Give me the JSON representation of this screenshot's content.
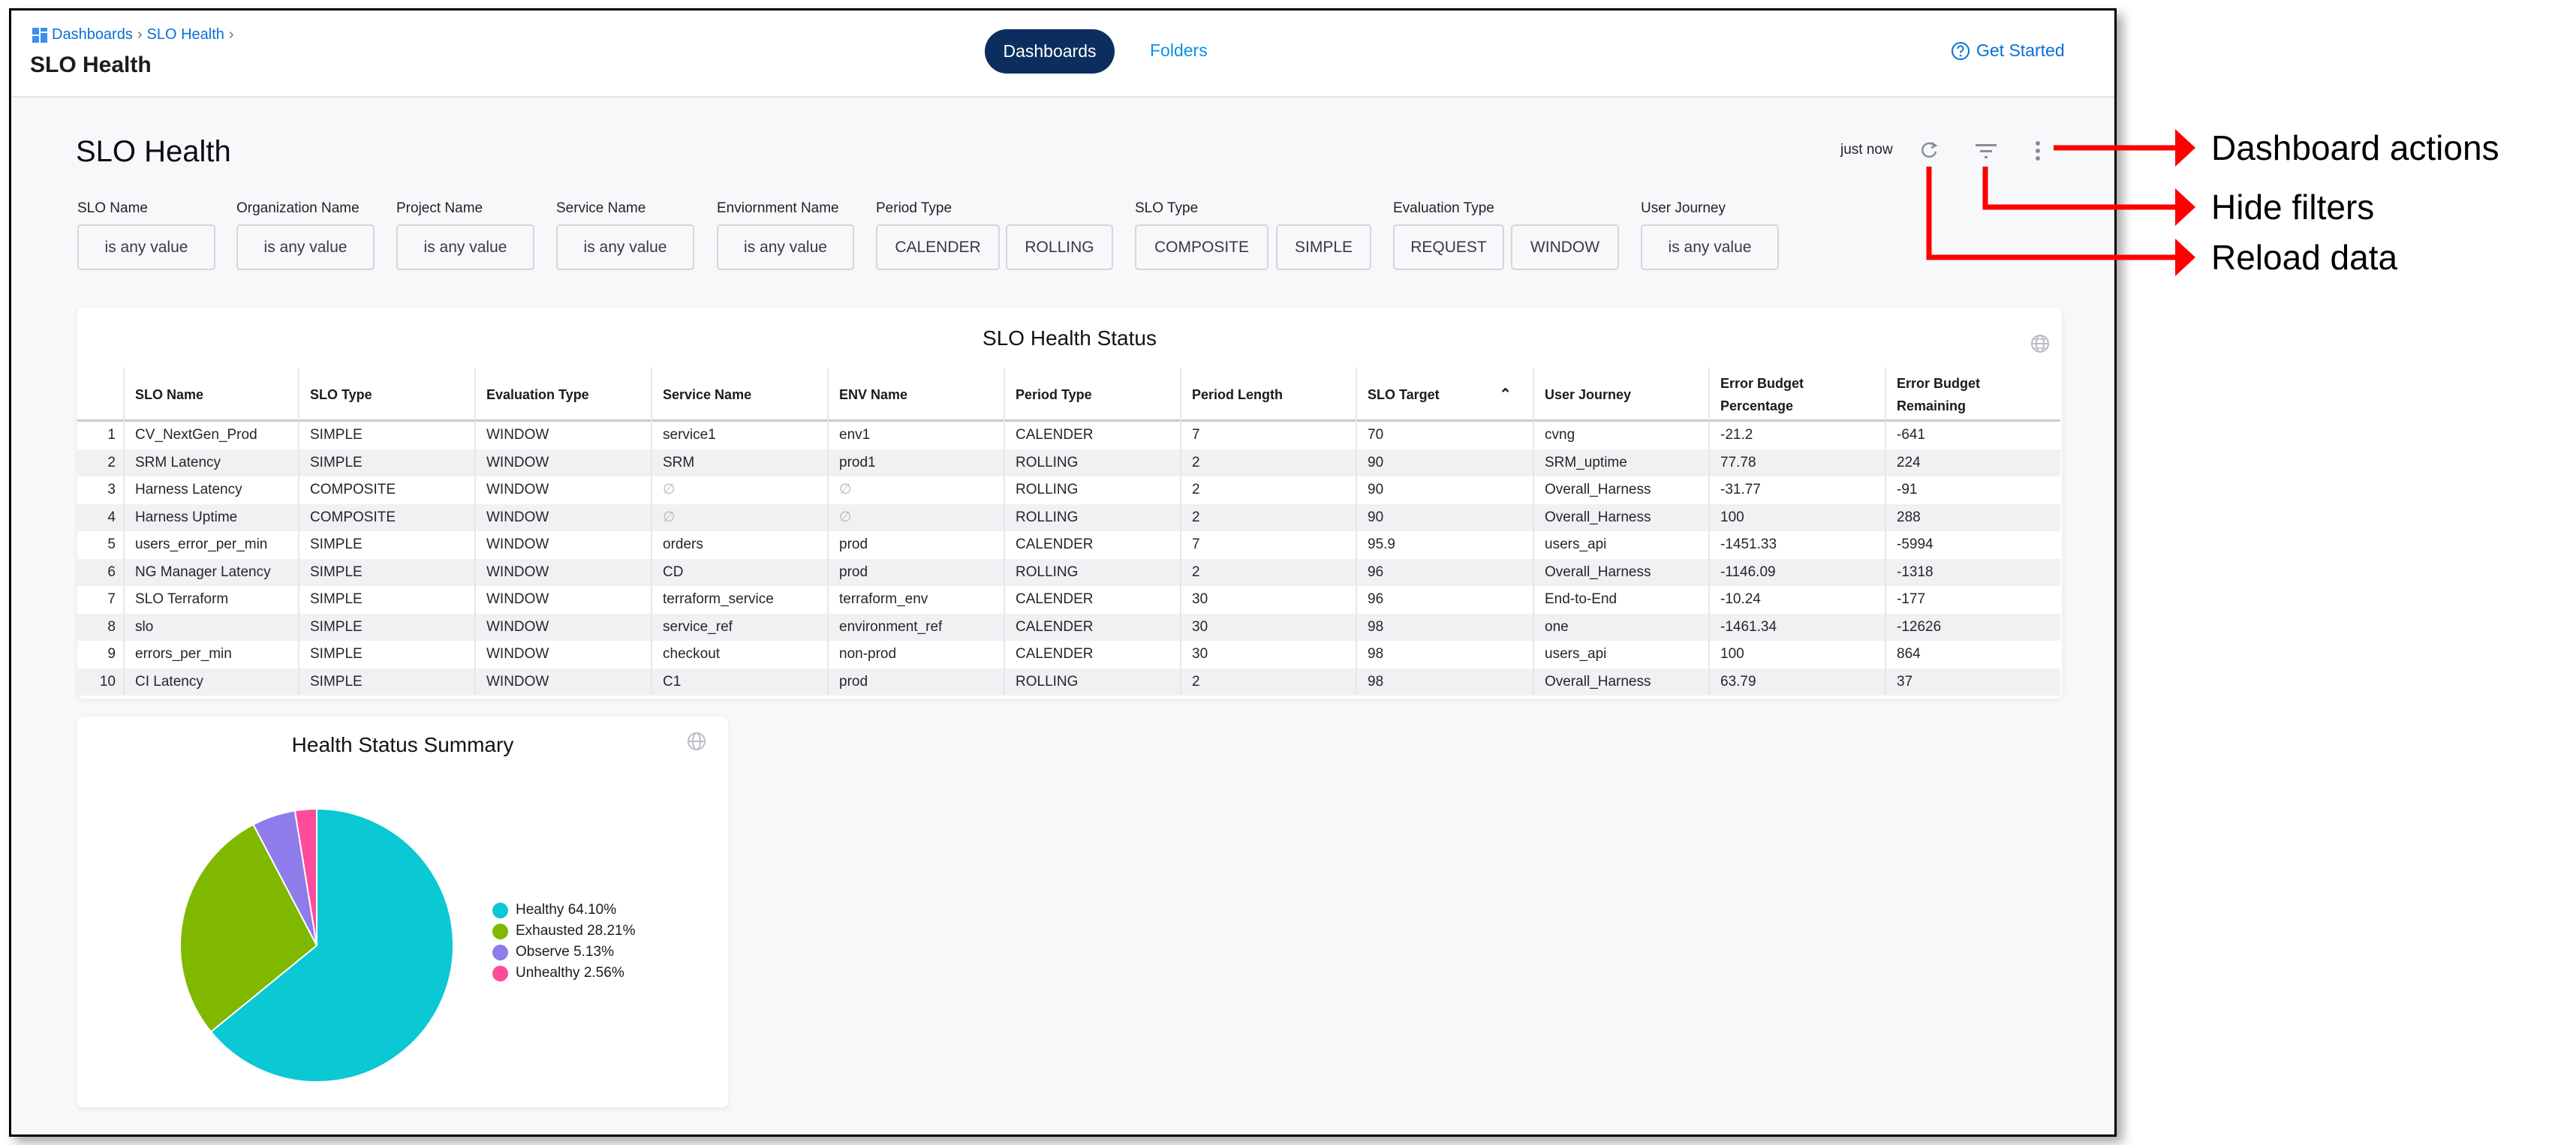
{
  "breadcrumb": {
    "items": [
      "Dashboards",
      "SLO Health"
    ]
  },
  "header": {
    "title": "SLO Health",
    "nav": [
      "Dashboards",
      "Folders"
    ],
    "get_started": "Get Started"
  },
  "dashboard": {
    "title": "SLO Health",
    "last_updated": "just now",
    "icons": {
      "reload": "refresh-icon",
      "filters": "filter-icon",
      "actions": "kebab-icon"
    }
  },
  "filters": [
    {
      "label": "SLO Name",
      "options": [
        "is any value"
      ]
    },
    {
      "label": "Organization Name",
      "options": [
        "is any value"
      ]
    },
    {
      "label": "Project Name",
      "options": [
        "is any value"
      ]
    },
    {
      "label": "Service Name",
      "options": [
        "is any value"
      ]
    },
    {
      "label": "Enviornment Name",
      "options": [
        "is any value"
      ]
    },
    {
      "label": "Period Type",
      "options": [
        "CALENDER",
        "ROLLING"
      ]
    },
    {
      "label": "SLO Type",
      "options": [
        "COMPOSITE",
        "SIMPLE"
      ]
    },
    {
      "label": "Evaluation Type",
      "options": [
        "REQUEST",
        "WINDOW"
      ]
    },
    {
      "label": "User Journey",
      "options": [
        "is any value"
      ]
    }
  ],
  "table": {
    "title": "SLO Health Status",
    "sorted_column": "SLO Target",
    "sort_direction": "ascending",
    "columns": [
      "SLO Name",
      "SLO Type",
      "Evaluation Type",
      "Service Name",
      "ENV Name",
      "Period Type",
      "Period Length",
      "SLO Target",
      "User Journey",
      "Error Budget Percentage",
      "Error Budget Remaining"
    ],
    "rows": [
      [
        "1",
        "CV_NextGen_Prod",
        "SIMPLE",
        "WINDOW",
        "service1",
        "env1",
        "CALENDER",
        "7",
        "70",
        "cvng",
        "-21.2",
        "-641"
      ],
      [
        "2",
        "SRM Latency",
        "SIMPLE",
        "WINDOW",
        "SRM",
        "prod1",
        "ROLLING",
        "2",
        "90",
        "SRM_uptime",
        "77.78",
        "224"
      ],
      [
        "3",
        "Harness Latency",
        "COMPOSITE",
        "WINDOW",
        "∅",
        "∅",
        "ROLLING",
        "2",
        "90",
        "Overall_Harness",
        "-31.77",
        "-91"
      ],
      [
        "4",
        "Harness Uptime",
        "COMPOSITE",
        "WINDOW",
        "∅",
        "∅",
        "ROLLING",
        "2",
        "90",
        "Overall_Harness",
        "100",
        "288"
      ],
      [
        "5",
        "users_error_per_min",
        "SIMPLE",
        "WINDOW",
        "orders",
        "prod",
        "CALENDER",
        "7",
        "95.9",
        "users_api",
        "-1451.33",
        "-5994"
      ],
      [
        "6",
        "NG Manager Latency",
        "SIMPLE",
        "WINDOW",
        "CD",
        "prod",
        "ROLLING",
        "2",
        "96",
        "Overall_Harness",
        "-1146.09",
        "-1318"
      ],
      [
        "7",
        "SLO Terraform",
        "SIMPLE",
        "WINDOW",
        "terraform_service",
        "terraform_env",
        "CALENDER",
        "30",
        "96",
        "End-to-End",
        "-10.24",
        "-177"
      ],
      [
        "8",
        "slo",
        "SIMPLE",
        "WINDOW",
        "service_ref",
        "environment_ref",
        "CALENDER",
        "30",
        "98",
        "one",
        "-1461.34",
        "-12626"
      ],
      [
        "9",
        "errors_per_min",
        "SIMPLE",
        "WINDOW",
        "checkout",
        "non-prod",
        "CALENDER",
        "30",
        "98",
        "users_api",
        "100",
        "864"
      ],
      [
        "10",
        "CI Latency",
        "SIMPLE",
        "WINDOW",
        "C1",
        "prod",
        "ROLLING",
        "2",
        "98",
        "Overall_Harness",
        "63.79",
        "37"
      ]
    ]
  },
  "chart_data": {
    "type": "pie",
    "title": "Health Status Summary",
    "legend_position": "right",
    "slices": [
      {
        "label": "Healthy 64.10%",
        "name": "Healthy",
        "value": 64.1,
        "color": "#0ac8d4"
      },
      {
        "label": "Exhausted 28.21%",
        "name": "Exhausted",
        "value": 28.21,
        "color": "#80b800"
      },
      {
        "label": "Observe 5.13%",
        "name": "Observe",
        "value": 5.13,
        "color": "#8f7bea"
      },
      {
        "label": "Unhealthy 2.56%",
        "name": "Unhealthy",
        "value": 2.56,
        "color": "#ff4b9b"
      }
    ]
  },
  "annotations": [
    "Dashboard actions",
    "Hide filters",
    "Reload data"
  ],
  "colors": {
    "accent": "#0a6fd6",
    "pill": "#0b2e5e",
    "annotation": "#ff0000"
  }
}
